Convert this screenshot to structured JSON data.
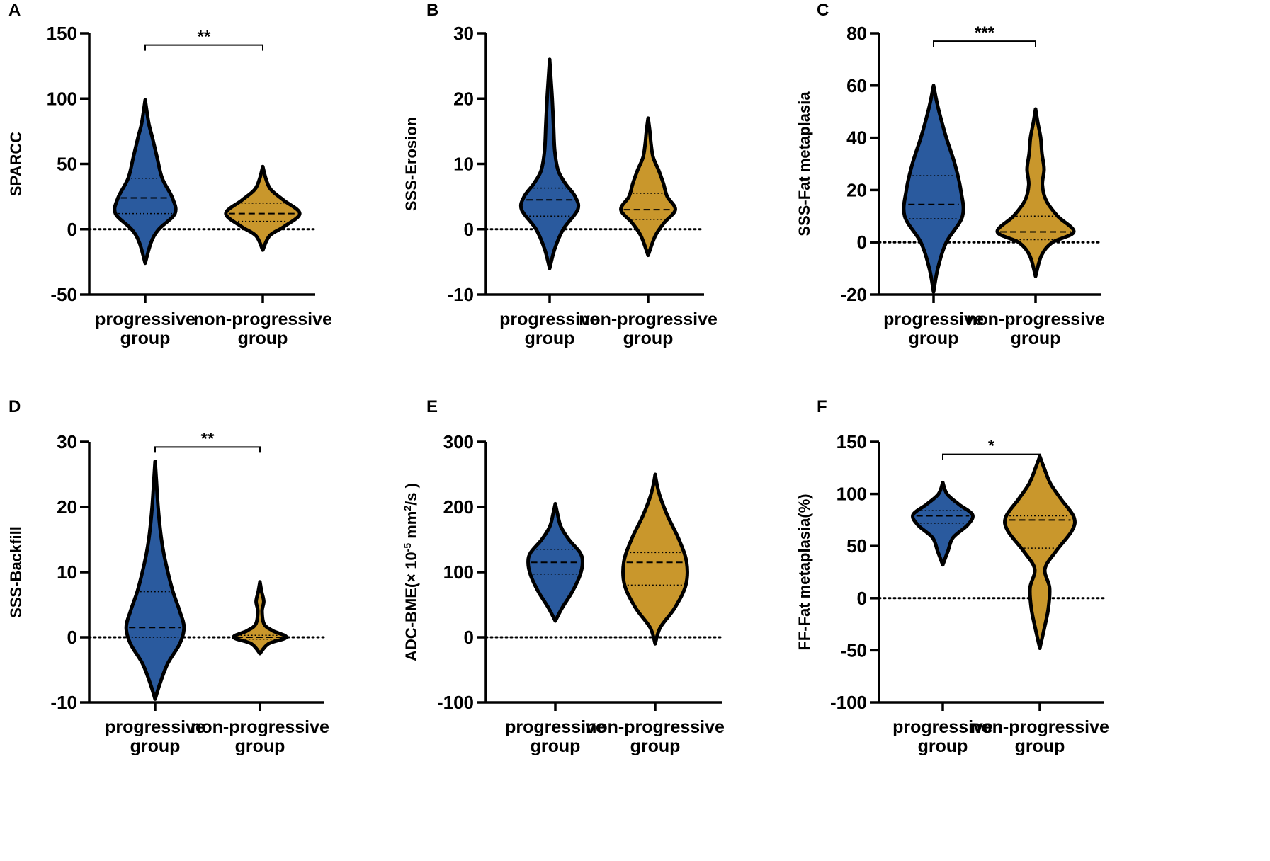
{
  "colors": {
    "progressive": "#2a5a9e",
    "nonprogressive": "#c9972c",
    "outline": "#000000"
  },
  "chart_data": [
    {
      "panel": "A",
      "type": "violin",
      "ylabel": "SPARCC",
      "ylim": [
        -50,
        150
      ],
      "ticks": [
        -50,
        0,
        50,
        100,
        150
      ],
      "tick_labels": [
        "-50",
        "0",
        "50",
        "100",
        "150"
      ],
      "groups": [
        {
          "name_line1": "progressive",
          "name_line2": "group",
          "color": "#2a5a9e",
          "min": -26,
          "max": 99,
          "median": 24,
          "q1": 12,
          "q3": 39,
          "widths": [
            [
              -26,
              0
            ],
            [
              -10,
              0.14
            ],
            [
              0,
              0.32
            ],
            [
              12,
              0.7
            ],
            [
              24,
              0.64
            ],
            [
              39,
              0.4
            ],
            [
              55,
              0.28
            ],
            [
              70,
              0.17
            ],
            [
              80,
              0.09
            ],
            [
              90,
              0.04
            ],
            [
              99,
              0
            ]
          ]
        },
        {
          "name_line1": "non-progressive",
          "name_line2": "group",
          "color": "#c9972c",
          "min": -16,
          "max": 48,
          "median": 12,
          "q1": 6,
          "q3": 20,
          "widths": [
            [
              -16,
              0
            ],
            [
              -5,
              0.16
            ],
            [
              2,
              0.5
            ],
            [
              12,
              0.87
            ],
            [
              22,
              0.5
            ],
            [
              30,
              0.2
            ],
            [
              38,
              0.08
            ],
            [
              48,
              0
            ]
          ]
        }
      ],
      "significance": {
        "label": "**",
        "y": 141
      }
    },
    {
      "panel": "B",
      "type": "violin",
      "ylabel": "SSS-Erosion",
      "ylim": [
        -10,
        30
      ],
      "ticks": [
        -10,
        0,
        10,
        20,
        30
      ],
      "tick_labels": [
        "-10",
        "0",
        "10",
        "20",
        "30"
      ],
      "groups": [
        {
          "name_line1": "progressive",
          "name_line2": "group",
          "color": "#2a5a9e",
          "min": -6,
          "max": 26,
          "median": 4.5,
          "q1": 2,
          "q3": 6.3,
          "widths": [
            [
              -6,
              0
            ],
            [
              -3,
              0.12
            ],
            [
              0,
              0.32
            ],
            [
              3,
              0.66
            ],
            [
              5,
              0.6
            ],
            [
              7,
              0.37
            ],
            [
              9,
              0.2
            ],
            [
              12,
              0.12
            ],
            [
              16,
              0.09
            ],
            [
              20,
              0.06
            ],
            [
              23,
              0.03
            ],
            [
              26,
              0
            ]
          ]
        },
        {
          "name_line1": "non-progressive",
          "name_line2": "group",
          "color": "#c9972c",
          "min": -4,
          "max": 17,
          "median": 3,
          "q1": 1.5,
          "q3": 5.5,
          "widths": [
            [
              -4,
              0
            ],
            [
              -1,
              0.17
            ],
            [
              1,
              0.38
            ],
            [
              3,
              0.64
            ],
            [
              5,
              0.45
            ],
            [
              7,
              0.36
            ],
            [
              9,
              0.25
            ],
            [
              11,
              0.12
            ],
            [
              13,
              0.07
            ],
            [
              15,
              0.04
            ],
            [
              17,
              0
            ]
          ]
        }
      ]
    },
    {
      "panel": "C",
      "type": "violin",
      "ylabel": "SSS-Fat metaplasia",
      "ylim": [
        -20,
        80
      ],
      "ticks": [
        -20,
        0,
        20,
        40,
        60,
        80
      ],
      "tick_labels": [
        "-20",
        "0",
        "20",
        "40",
        "60",
        "80"
      ],
      "groups": [
        {
          "name_line1": "progressive",
          "name_line2": "group",
          "color": "#2a5a9e",
          "min": -19,
          "max": 60,
          "median": 14.5,
          "q1": 9,
          "q3": 25.5,
          "widths": [
            [
              -19,
              0
            ],
            [
              -10,
              0.1
            ],
            [
              0,
              0.3
            ],
            [
              10,
              0.68
            ],
            [
              20,
              0.64
            ],
            [
              30,
              0.5
            ],
            [
              40,
              0.3
            ],
            [
              50,
              0.13
            ],
            [
              55,
              0.06
            ],
            [
              60,
              0
            ]
          ]
        },
        {
          "name_line1": "non-progressive",
          "name_line2": "group",
          "color": "#c9972c",
          "min": -13,
          "max": 51,
          "median": 4,
          "q1": 1,
          "q3": 10,
          "widths": [
            [
              -13,
              0
            ],
            [
              -5,
              0.14
            ],
            [
              0,
              0.4
            ],
            [
              4,
              0.9
            ],
            [
              10,
              0.52
            ],
            [
              16,
              0.25
            ],
            [
              22,
              0.16
            ],
            [
              28,
              0.2
            ],
            [
              34,
              0.15
            ],
            [
              40,
              0.12
            ],
            [
              46,
              0.05
            ],
            [
              51,
              0
            ]
          ]
        }
      ],
      "significance": {
        "label": "***",
        "y": 77
      }
    },
    {
      "panel": "D",
      "type": "violin",
      "ylabel": "SSS-Backfill",
      "ylim": [
        -10,
        30
      ],
      "ticks": [
        -10,
        0,
        10,
        20,
        30
      ],
      "tick_labels": [
        "-10",
        "0",
        "10",
        "20",
        "30"
      ],
      "groups": [
        {
          "name_line1": "progressive",
          "name_line2": "group",
          "color": "#2a5a9e",
          "min": -9.5,
          "max": 27,
          "median": 1.5,
          "q1": 0,
          "q3": 7,
          "widths": [
            [
              -9.5,
              0
            ],
            [
              -7,
              0.12
            ],
            [
              -4,
              0.3
            ],
            [
              -1,
              0.58
            ],
            [
              1.5,
              0.68
            ],
            [
              4,
              0.58
            ],
            [
              7,
              0.42
            ],
            [
              10,
              0.3
            ],
            [
              13,
              0.2
            ],
            [
              16,
              0.13
            ],
            [
              20,
              0.07
            ],
            [
              24,
              0.03
            ],
            [
              27,
              0
            ]
          ]
        },
        {
          "name_line1": "non-progressive",
          "name_line2": "group",
          "color": "#c9972c",
          "min": -2.5,
          "max": 8.5,
          "median": 0,
          "q1": -0.3,
          "q3": 0.3,
          "widths": [
            [
              -2.5,
              0
            ],
            [
              -1,
              0.2
            ],
            [
              0,
              0.62
            ],
            [
              1,
              0.3
            ],
            [
              2,
              0.1
            ],
            [
              4,
              0.05
            ],
            [
              5.5,
              0.09
            ],
            [
              7,
              0.04
            ],
            [
              8.5,
              0
            ]
          ]
        }
      ],
      "significance": {
        "label": "**",
        "y": 29.2
      }
    },
    {
      "panel": "E",
      "type": "violin",
      "ylabel": "ADC-BME(× 10",
      "ylabel_exp": "-5",
      "ylabel_mid": " mm",
      "ylabel_exp2": "2",
      "ylabel_end": "/s )",
      "ylim": [
        -100,
        300
      ],
      "ticks": [
        -100,
        0,
        100,
        200,
        300
      ],
      "tick_labels": [
        "-100",
        "0",
        "100",
        "200",
        "300"
      ],
      "groups": [
        {
          "name_line1": "progressive",
          "name_line2": "group",
          "color": "#2a5a9e",
          "min": 25,
          "max": 205,
          "median": 115,
          "q1": 97,
          "q3": 135,
          "widths": [
            [
              25,
              0
            ],
            [
              45,
              0.16
            ],
            [
              70,
              0.4
            ],
            [
              95,
              0.58
            ],
            [
              115,
              0.64
            ],
            [
              130,
              0.58
            ],
            [
              150,
              0.32
            ],
            [
              170,
              0.13
            ],
            [
              190,
              0.05
            ],
            [
              205,
              0
            ]
          ]
        },
        {
          "name_line1": "non-progressive",
          "name_line2": "group",
          "color": "#c9972c",
          "min": -10,
          "max": 250,
          "median": 115,
          "q1": 80,
          "q3": 130,
          "widths": [
            [
              -10,
              0
            ],
            [
              15,
              0.12
            ],
            [
              45,
              0.46
            ],
            [
              80,
              0.72
            ],
            [
              115,
              0.74
            ],
            [
              150,
              0.56
            ],
            [
              185,
              0.3
            ],
            [
              215,
              0.12
            ],
            [
              235,
              0.04
            ],
            [
              250,
              0
            ]
          ]
        }
      ]
    },
    {
      "panel": "F",
      "type": "violin",
      "ylabel": "FF-Fat metaplasia(%)",
      "ylim": [
        -100,
        150
      ],
      "ticks": [
        -100,
        -50,
        0,
        50,
        100,
        150
      ],
      "tick_labels": [
        "-100",
        "-50",
        "0",
        "50",
        "100",
        "150"
      ],
      "groups": [
        {
          "name_line1": "progressive",
          "name_line2": "group",
          "color": "#2a5a9e",
          "min": 32,
          "max": 111,
          "median": 79,
          "q1": 72,
          "q3": 84,
          "widths": [
            [
              32,
              0
            ],
            [
              45,
              0.12
            ],
            [
              58,
              0.24
            ],
            [
              70,
              0.58
            ],
            [
              80,
              0.7
            ],
            [
              90,
              0.38
            ],
            [
              100,
              0.1
            ],
            [
              111,
              0
            ]
          ]
        },
        {
          "name_line1": "non-progressive",
          "name_line2": "group",
          "color": "#c9972c",
          "min": -48,
          "max": 136,
          "median": 75,
          "q1": 48,
          "q3": 79,
          "widths": [
            [
              -48,
              0
            ],
            [
              -30,
              0.1
            ],
            [
              -10,
              0.2
            ],
            [
              10,
              0.23
            ],
            [
              28,
              0.12
            ],
            [
              45,
              0.38
            ],
            [
              65,
              0.76
            ],
            [
              78,
              0.8
            ],
            [
              95,
              0.5
            ],
            [
              110,
              0.25
            ],
            [
              125,
              0.1
            ],
            [
              136,
              0
            ]
          ]
        }
      ],
      "significance": {
        "label": "*",
        "y": 138
      }
    }
  ]
}
